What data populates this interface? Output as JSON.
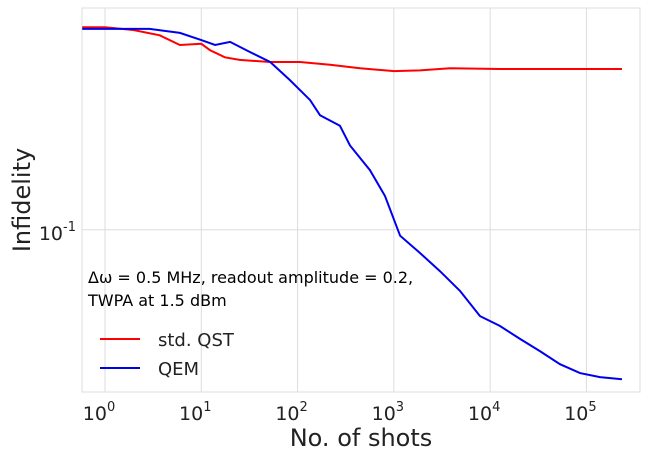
{
  "chart_data": {
    "type": "line",
    "xlabel": "No. of shots",
    "ylabel": "Infidelity",
    "xscale": "log",
    "yscale": "log",
    "grid": true,
    "legend": "lower left",
    "annotation": [
      "Δω = 0.5 MHz, readout amplitude = 0.2,",
      "TWPA at 1.5 dBm"
    ],
    "xlim": [
      0.577,
      360000
    ],
    "ylim": [
      0.04,
      0.35
    ],
    "xticks": [
      {
        "value": 1,
        "label": "10^0"
      },
      {
        "value": 10,
        "label": "10^1"
      },
      {
        "value": 100,
        "label": "10^2"
      },
      {
        "value": 1000,
        "label": "10^3"
      },
      {
        "value": 10000,
        "label": "10^4"
      },
      {
        "value": 100000,
        "label": "10^5"
      }
    ],
    "yticks": [
      {
        "value": 0.1,
        "label": "10^-1"
      }
    ],
    "series": [
      {
        "name": "std. QST",
        "color": "#ff0000",
        "x": [
          0.58,
          1,
          2,
          3.7,
          6.0,
          10,
          12.3,
          17.6,
          25,
          52,
          106,
          217,
          445,
          1000,
          1870,
          3830,
          12600,
          41800,
          234000
        ],
        "values": [
          0.314,
          0.314,
          0.309,
          0.3,
          0.284,
          0.286,
          0.276,
          0.265,
          0.261,
          0.258,
          0.258,
          0.254,
          0.249,
          0.245,
          0.246,
          0.249,
          0.248,
          0.248,
          0.248
        ]
      },
      {
        "name": "QEM",
        "color": "#0000ee",
        "x": [
          0.58,
          2.9,
          6.0,
          10,
          13.9,
          19.9,
          32,
          52,
          83,
          135,
          171,
          275,
          350,
          565,
          809,
          1160,
          1870,
          3010,
          4860,
          7840,
          12600,
          20400,
          32900,
          53100,
          85700,
          138000,
          234000
        ],
        "values": [
          0.311,
          0.311,
          0.304,
          0.292,
          0.284,
          0.289,
          0.273,
          0.258,
          0.233,
          0.208,
          0.191,
          0.18,
          0.161,
          0.14,
          0.121,
          0.0967,
          0.0877,
          0.0792,
          0.0708,
          0.0614,
          0.0581,
          0.054,
          0.0504,
          0.0468,
          0.0445,
          0.0435,
          0.043
        ]
      }
    ]
  }
}
